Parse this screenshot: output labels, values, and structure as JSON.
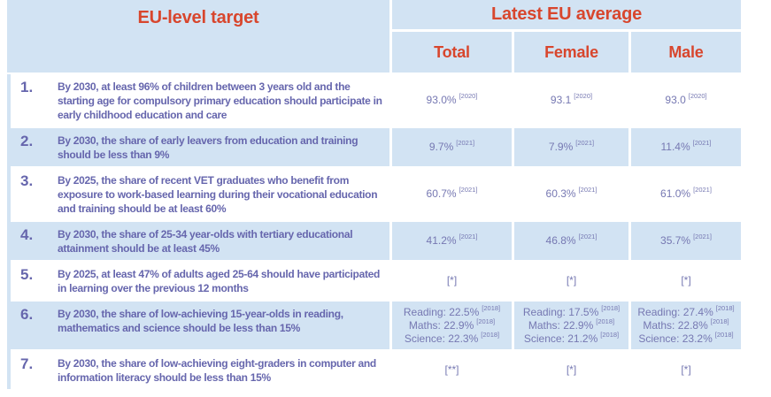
{
  "colors": {
    "cell_blue": "#d2e3f3",
    "header_text": "#d8462d",
    "target_text": "#6666ad",
    "value_text": "#7678b2"
  },
  "header": {
    "target_label": "EU-level target",
    "average_label": "Latest EU average",
    "columns": [
      "Total",
      "Female",
      "Male"
    ]
  },
  "rows": [
    {
      "num": "1.",
      "target": "By 2030, at least 96% of children between 3 years old and the starting age for compulsory primary education should participate in early childhood education and care",
      "total": [
        {
          "text": "93.0%",
          "year": "[2020]"
        }
      ],
      "female": [
        {
          "text": "93.1",
          "year": "[2020]"
        }
      ],
      "male": [
        {
          "text": "93.0",
          "year": "[2020]"
        }
      ]
    },
    {
      "num": "2.",
      "target": "By 2030, the share of early leavers from education and training should be less than 9%",
      "total": [
        {
          "text": "9.7%",
          "year": "[2021]"
        }
      ],
      "female": [
        {
          "text": "7.9%",
          "year": "[2021]"
        }
      ],
      "male": [
        {
          "text": "11.4%",
          "year": "[2021]"
        }
      ]
    },
    {
      "num": "3.",
      "target": "By 2025, the share of recent VET graduates who benefit from exposure to work-based learning during their vocational education and training should be at least 60%",
      "total": [
        {
          "text": "60.7%",
          "year": "[2021]"
        }
      ],
      "female": [
        {
          "text": "60.3%",
          "year": "[2021]"
        }
      ],
      "male": [
        {
          "text": "61.0%",
          "year": "[2021]"
        }
      ]
    },
    {
      "num": "4.",
      "target": "By 2030, the share of 25-34 year-olds with tertiary educational attainment should be at least 45%",
      "total": [
        {
          "text": "41.2%",
          "year": "[2021]"
        }
      ],
      "female": [
        {
          "text": "46.8%",
          "year": "[2021]"
        }
      ],
      "male": [
        {
          "text": "35.7%",
          "year": "[2021]"
        }
      ]
    },
    {
      "num": "5.",
      "target": "By 2025, at least 47% of adults aged 25-64 should have participated in learning over the previous 12 months",
      "total": [
        {
          "text": "[*]"
        }
      ],
      "female": [
        {
          "text": "[*]"
        }
      ],
      "male": [
        {
          "text": "[*]"
        }
      ]
    },
    {
      "num": "6.",
      "target": "By 2030, the share of low-achieving 15-year-olds in reading, mathematics and science should be less than 15%",
      "total": [
        {
          "text": "Reading: 22.5%",
          "year": "[2018]"
        },
        {
          "text": "Maths: 22.9%",
          "year": "[2018]"
        },
        {
          "text": "Science: 22.3%",
          "year": "[2018]"
        }
      ],
      "female": [
        {
          "text": "Reading: 17.5%",
          "year": "[2018]"
        },
        {
          "text": "Maths: 22.9%",
          "year": "[2018]"
        },
        {
          "text": "Science: 21.2%",
          "year": "[2018]"
        }
      ],
      "male": [
        {
          "text": "Reading: 27.4%",
          "year": "[2018]"
        },
        {
          "text": "Maths: 22.8%",
          "year": "[2018]"
        },
        {
          "text": "Science: 23.2%",
          "year": "[2018]"
        }
      ]
    },
    {
      "num": "7.",
      "target": "By 2030, the share of low-achieving eight-graders in computer and information literacy should be less than 15%",
      "total": [
        {
          "text": "[**]"
        }
      ],
      "female": [
        {
          "text": "[*]"
        }
      ],
      "male": [
        {
          "text": "[*]"
        }
      ]
    }
  ]
}
